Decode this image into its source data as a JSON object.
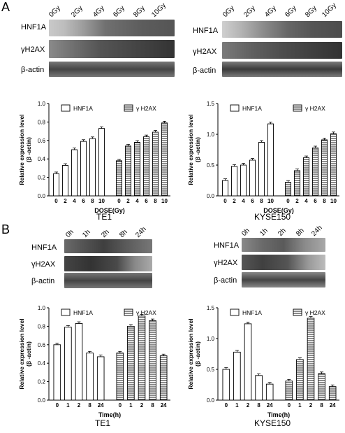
{
  "panels": [
    {
      "letter": "A",
      "left": {
        "lanes": [
          "0Gy",
          "2Gy",
          "4Gy",
          "6Gy",
          "8Gy",
          "10Gy"
        ],
        "rows": [
          "HNF1A",
          "γH2AX",
          "β-actin"
        ],
        "caption": "TE1",
        "chart_index": 0
      },
      "right": {
        "lanes": [
          "0Gy",
          "2Gy",
          "4Gy",
          "6Gy",
          "8Gy",
          "10Gy"
        ],
        "rows": [
          "HNF1A",
          "γH2AX",
          "β-actin"
        ],
        "caption": "KYSE150",
        "chart_index": 1
      }
    },
    {
      "letter": "B",
      "left": {
        "lanes": [
          "0h",
          "1h",
          "2h",
          "8h",
          "24h"
        ],
        "rows": [
          "HNF1A",
          "γH2AX",
          "β-actin"
        ],
        "caption": "TE1",
        "chart_index": 2
      },
      "right": {
        "lanes": [
          "0h",
          "1h",
          "2h",
          "8h",
          "24h"
        ],
        "rows": [
          "HNF1A",
          "γH2AX",
          "β-actin"
        ],
        "caption": "KYSE150",
        "chart_index": 3
      }
    }
  ],
  "chart_data": [
    {
      "type": "bar",
      "ylabel": "Relative expression level\n(β -actin)",
      "xlabel": "DOSE(Gy)",
      "ylim": [
        0,
        1.0
      ],
      "yticks": [
        "0.0",
        "0.2",
        "0.4",
        "0.6",
        "0.8",
        "1.0"
      ],
      "categories": [
        "0",
        "2",
        "4",
        "6",
        "8",
        "10"
      ],
      "series": [
        {
          "name": "HNF1A",
          "pattern": "open",
          "values": [
            0.24,
            0.33,
            0.5,
            0.59,
            0.62,
            0.73
          ]
        },
        {
          "name": "γ H2AX",
          "pattern": "hatched",
          "values": [
            0.38,
            0.54,
            0.58,
            0.64,
            0.69,
            0.79
          ]
        }
      ]
    },
    {
      "type": "bar",
      "ylabel": "Relative expression level\n(β -actin)",
      "xlabel": "DOSE(Gy)",
      "ylim": [
        0,
        1.5
      ],
      "yticks": [
        "0.0",
        "0.5",
        "1.0",
        "1.5"
      ],
      "categories": [
        "0",
        "2",
        "4",
        "6",
        "8",
        "10"
      ],
      "series": [
        {
          "name": "HNF1A",
          "pattern": "open",
          "values": [
            0.25,
            0.48,
            0.5,
            0.58,
            0.87,
            1.17
          ]
        },
        {
          "name": "γ H2AX",
          "pattern": "hatched",
          "values": [
            0.22,
            0.41,
            0.62,
            0.78,
            0.91,
            1.01
          ]
        }
      ]
    },
    {
      "type": "bar",
      "ylabel": "Relative expression level\n(β -actin)",
      "xlabel": "Time(h)",
      "ylim": [
        0,
        1.0
      ],
      "yticks": [
        "0.0",
        "0.2",
        "0.4",
        "0.6",
        "0.8",
        "1.0"
      ],
      "categories": [
        "0",
        "1",
        "2",
        "8",
        "24"
      ],
      "series": [
        {
          "name": "HNF1A",
          "pattern": "open",
          "values": [
            0.6,
            0.79,
            0.83,
            0.51,
            0.47
          ]
        },
        {
          "name": "γ H2AX",
          "pattern": "hatched",
          "values": [
            0.51,
            0.8,
            0.91,
            0.86,
            0.48
          ]
        }
      ]
    },
    {
      "type": "bar",
      "ylabel": "Relative expression level\n(β -actin)",
      "xlabel": "Time(h)",
      "ylim": [
        0,
        1.5
      ],
      "yticks": [
        "0.0",
        "0.5",
        "1.0",
        "1.5"
      ],
      "categories": [
        "0",
        "1",
        "2",
        "8",
        "24"
      ],
      "series": [
        {
          "name": "HNF1A",
          "pattern": "open",
          "values": [
            0.5,
            0.78,
            1.24,
            0.4,
            0.26
          ]
        },
        {
          "name": "γ H2AX",
          "pattern": "hatched",
          "values": [
            0.31,
            0.66,
            1.33,
            0.43,
            0.22
          ]
        }
      ]
    }
  ]
}
